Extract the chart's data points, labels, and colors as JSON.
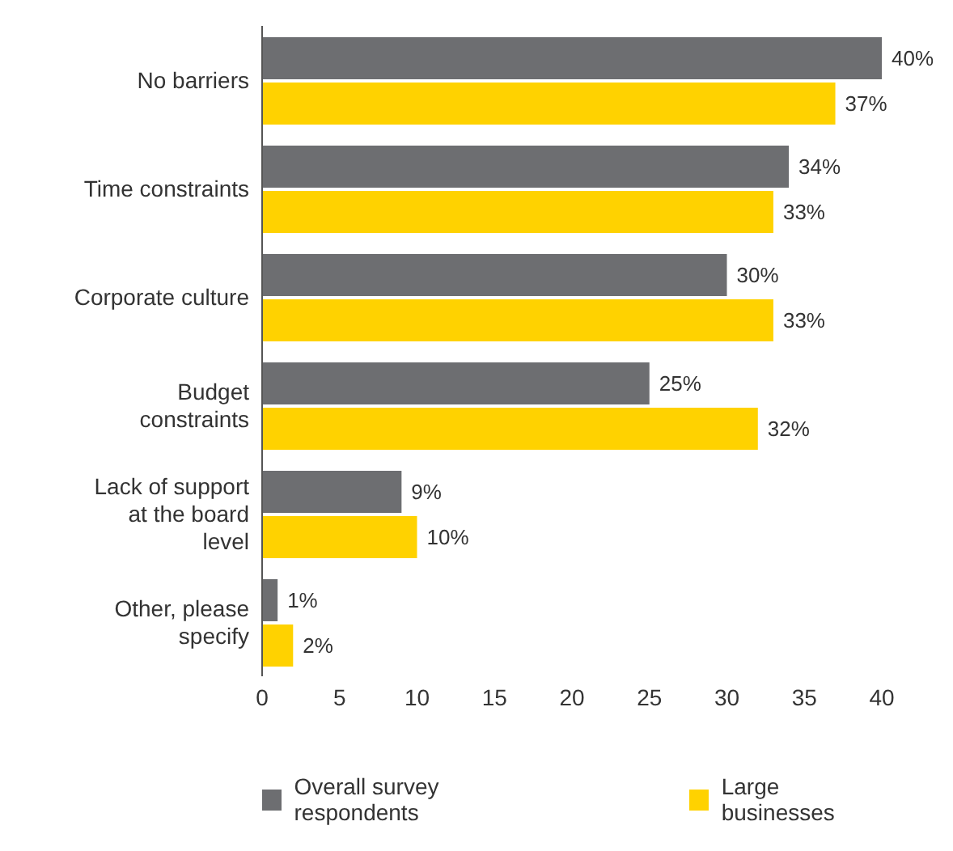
{
  "chart_data": {
    "type": "bar",
    "orientation": "horizontal",
    "categories": [
      "No barriers",
      "Time constraints",
      "Corporate culture",
      "Budget constraints",
      "Lack of support at the board level",
      "Other, please specify"
    ],
    "series": [
      {
        "name": "Overall survey respondents",
        "color": "#6d6e71",
        "values": [
          40,
          34,
          30,
          25,
          9,
          1
        ],
        "value_labels": [
          "40%",
          "34%",
          "30%",
          "25%",
          "9%",
          "1%"
        ]
      },
      {
        "name": "Large businesses",
        "color": "#ffd200",
        "values": [
          37,
          33,
          33,
          32,
          10,
          2
        ],
        "value_labels": [
          "37%",
          "33%",
          "33%",
          "32%",
          "10%",
          "2%"
        ]
      }
    ],
    "xlim": [
      0,
      40
    ],
    "xticks": [
      0,
      5,
      10,
      15,
      20,
      25,
      30,
      35,
      40
    ],
    "legend": "bottom"
  }
}
